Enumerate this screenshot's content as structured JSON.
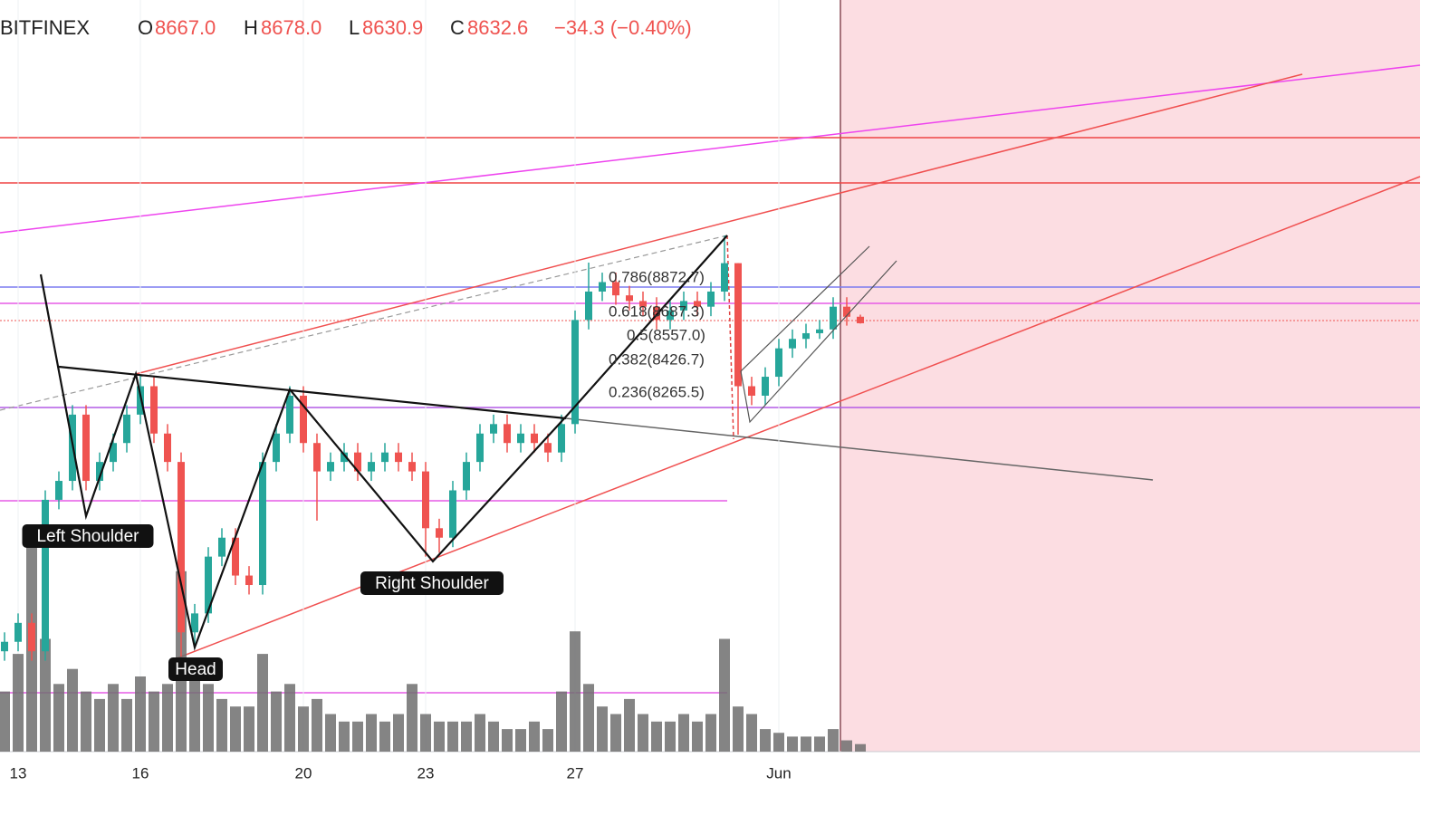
{
  "chart_data": {
    "type": "candlestick",
    "header": {
      "exchange": "BITFINEX",
      "open_label": "O",
      "open": "8667.0",
      "high_label": "H",
      "high": "8678.0",
      "low_label": "L",
      "low": "8630.9",
      "close_label": "C",
      "close": "8632.6",
      "change": "−34.3 (−0.40%)"
    },
    "categories": [
      null,
      "13",
      null,
      null,
      null,
      null,
      null,
      null,
      null,
      null,
      "16",
      null,
      null,
      null,
      null,
      null,
      null,
      null,
      null,
      null,
      null,
      null,
      "20",
      null,
      null,
      null,
      null,
      null,
      null,
      null,
      null,
      "23",
      null,
      null,
      null,
      null,
      null,
      null,
      null,
      null,
      null,
      null,
      "27",
      null,
      null,
      null,
      null,
      null,
      null,
      null,
      null,
      null,
      null,
      null,
      null,
      null,
      null,
      "Jun",
      null,
      null,
      null,
      null,
      null,
      null
    ],
    "open": [
      6900,
      6950,
      7050,
      6900,
      7700,
      7800,
      8150,
      7800,
      7900,
      8000,
      8150,
      8300,
      8050,
      7900,
      7000,
      7100,
      7400,
      7500,
      7300,
      7250,
      7900,
      8050,
      8250,
      8000,
      7850,
      7900,
      7950,
      7850,
      7900,
      7950,
      7900,
      7850,
      7550,
      7500,
      7750,
      7900,
      8050,
      8100,
      8000,
      8050,
      8000,
      7950,
      8100,
      8650,
      8800,
      8850,
      8780,
      8750,
      8720,
      8650,
      8700,
      8750,
      8720,
      8800,
      8950,
      8300,
      8250,
      8350,
      8500,
      8550,
      8580,
      8600,
      8720,
      8667
    ],
    "high": [
      7000,
      7100,
      7100,
      7750,
      7850,
      8200,
      8200,
      7950,
      8050,
      8200,
      8355,
      8350,
      8100,
      7950,
      7150,
      7450,
      7550,
      7550,
      7350,
      7950,
      8100,
      8300,
      8300,
      8050,
      7950,
      8000,
      8000,
      7950,
      8000,
      8000,
      7950,
      7900,
      7600,
      7800,
      7950,
      8100,
      8150,
      8150,
      8100,
      8100,
      8050,
      8150,
      8700,
      8953,
      8900,
      8900,
      8830,
      8800,
      8770,
      8750,
      8800,
      8800,
      8850,
      9096,
      8950,
      8350,
      8400,
      8550,
      8600,
      8630,
      8650,
      8770,
      8770,
      8678
    ],
    "low": [
      6850,
      6900,
      6850,
      6850,
      7650,
      7750,
      7750,
      7750,
      7850,
      7950,
      8100,
      8000,
      7850,
      6872,
      6920,
      7050,
      7350,
      7250,
      7200,
      7200,
      7850,
      8000,
      7950,
      7590,
      7800,
      7850,
      7800,
      7800,
      7850,
      7850,
      7800,
      7400,
      7420,
      7450,
      7700,
      7850,
      8000,
      7950,
      7950,
      7950,
      7900,
      7900,
      8050,
      8600,
      8750,
      8730,
      8700,
      8670,
      8600,
      8600,
      8650,
      8670,
      8670,
      8750,
      8044,
      8200,
      8200,
      8300,
      8450,
      8500,
      8550,
      8550,
      8620,
      8630.9
    ],
    "close": [
      6950,
      7050,
      6900,
      7700,
      7800,
      8150,
      7800,
      7900,
      8000,
      8150,
      8300,
      8050,
      7900,
      7000,
      7100,
      7400,
      7500,
      7300,
      7250,
      7900,
      8050,
      8250,
      8000,
      7850,
      7900,
      7950,
      7850,
      7900,
      7950,
      7900,
      7850,
      7550,
      7500,
      7750,
      7900,
      8050,
      8100,
      8000,
      8050,
      8000,
      7950,
      8100,
      8650,
      8800,
      8850,
      8780,
      8750,
      8720,
      8650,
      8700,
      8750,
      8720,
      8800,
      8950,
      8300,
      8250,
      8350,
      8500,
      8550,
      8580,
      8600,
      8720,
      8667,
      8632.6
    ],
    "volume": [
      80,
      130,
      300,
      150,
      90,
      110,
      80,
      70,
      90,
      70,
      100,
      80,
      90,
      240,
      120,
      90,
      70,
      60,
      60,
      130,
      80,
      90,
      60,
      70,
      50,
      40,
      40,
      50,
      40,
      50,
      90,
      50,
      40,
      40,
      40,
      50,
      40,
      30,
      30,
      40,
      30,
      80,
      160,
      90,
      60,
      50,
      70,
      50,
      40,
      40,
      50,
      40,
      50,
      150,
      60,
      50,
      30,
      25,
      20,
      20,
      20,
      30,
      15,
      10
    ],
    "ylim": [
      6370,
      10340
    ],
    "y2lim": [
      0,
      1000
    ],
    "up_color": "#26a69a",
    "down_color": "#ef5350",
    "volume_color": "#6f6f6f",
    "annotations": [
      "Left Shoulder",
      "Head",
      "Right Shoulder"
    ],
    "fib_labels": [
      "0.786(8872.7)",
      "0.618(8687.3)",
      "0.5(8557.0)",
      "0.382(8426.7)",
      "0.236(8265.5)"
    ]
  }
}
